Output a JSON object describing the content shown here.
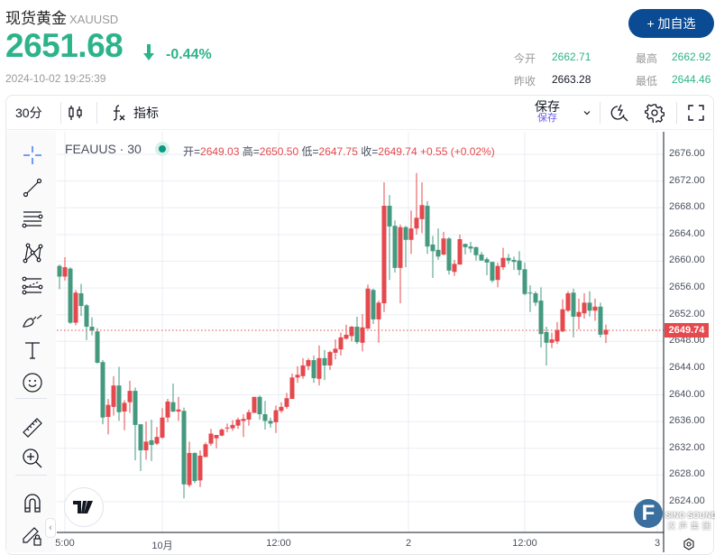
{
  "header": {
    "name": "现货黄金",
    "symbol": "XAUUSD",
    "price": "2651.68",
    "direction_icon": "arrow-down-icon",
    "change_pct": "-0.44%",
    "timestamp": "2024-10-02 19:25:39",
    "add_button": "+ 加自选"
  },
  "stats": [
    {
      "label": "今开",
      "value": "2662.71",
      "color": "#2db38a"
    },
    {
      "label": "最高",
      "value": "2662.92",
      "color": "#2db38a"
    },
    {
      "label": "昨收",
      "value": "2663.28",
      "color": "#131722"
    },
    {
      "label": "最低",
      "value": "2644.46",
      "color": "#2db38a"
    }
  ],
  "toolbar": {
    "interval": "30分",
    "chart_type_icon": "candles-icon",
    "indicators_icon": "fx-icon",
    "indicators": "指标",
    "save": "保存",
    "save_sub": "保存"
  },
  "left_tools": [
    "crosshair-icon",
    "trend-line-icon",
    "horizontal-lines-icon",
    "pattern-icon",
    "fib-icon",
    "brush-icon",
    "text-icon",
    "emoji-icon",
    "ruler-icon",
    "zoom-in-icon",
    "magnet-icon",
    "lock-drawing-icon"
  ],
  "legend": {
    "symbol": "FEAUUS · 30",
    "o_label": "开=",
    "o": "2649.03",
    "h_label": "高=",
    "h": "2650.50",
    "l_label": "低=",
    "l": "2647.75",
    "c_label": "收=",
    "c": "2649.74",
    "change": "+0.55 (+0.02%)"
  },
  "colors": {
    "up": "#e5484d",
    "down": "#45997f",
    "accent": "#0b4b94",
    "positive_text": "#2db38a"
  },
  "chart_data": {
    "type": "candlestick",
    "interval": "30",
    "ylim": [
      2621,
      2678
    ],
    "y_ticks": [
      "2676.00",
      "2672.00",
      "2668.00",
      "2664.00",
      "2660.00",
      "2656.00",
      "2652.00",
      "2648.00",
      "2644.00",
      "2640.00",
      "2636.00",
      "2632.00",
      "2628.00",
      "2624.00"
    ],
    "x_ticks": [
      {
        "label": "5:00",
        "index": 1
      },
      {
        "label": "10月",
        "index": 19
      },
      {
        "label": "12:00",
        "index": 40.5
      },
      {
        "label": "2",
        "index": 64.5
      },
      {
        "label": "12:00",
        "index": 86
      },
      {
        "label": "3",
        "index": 110.5
      }
    ],
    "current_price": "2649.74",
    "grid": true,
    "ohlc": [
      [
        2659.3,
        2659.5,
        2655.8,
        2657.7
      ],
      [
        2657.7,
        2660.6,
        2657.1,
        2659.1
      ],
      [
        2658.9,
        2659.1,
        2650.6,
        2650.8
      ],
      [
        2650.8,
        2655.7,
        2650.4,
        2655.3
      ],
      [
        2655.2,
        2656.6,
        2651.8,
        2653.3
      ],
      [
        2653.4,
        2653.6,
        2648.2,
        2650.2
      ],
      [
        2650.2,
        2651.6,
        2648.9,
        2649.6
      ],
      [
        2649.5,
        2650.0,
        2644.7,
        2644.8
      ],
      [
        2644.9,
        2645.2,
        2635.6,
        2636.6
      ],
      [
        2636.7,
        2639.4,
        2634.1,
        2638.5
      ],
      [
        2638.2,
        2642.8,
        2636.9,
        2641.4
      ],
      [
        2641.4,
        2644.2,
        2636.1,
        2637.4
      ],
      [
        2637.5,
        2639.2,
        2634.7,
        2638.8
      ],
      [
        2638.9,
        2642.1,
        2637.3,
        2640.6
      ],
      [
        2640.6,
        2641.1,
        2630.2,
        2635.5
      ],
      [
        2635.6,
        2635.6,
        2628.6,
        2631.7
      ],
      [
        2631.7,
        2636.0,
        2630.3,
        2633.0
      ],
      [
        2633.2,
        2636.3,
        2630.1,
        2632.5
      ],
      [
        2632.7,
        2635.2,
        2632.5,
        2633.7
      ],
      [
        2633.6,
        2638.0,
        2633.4,
        2636.6
      ],
      [
        2636.6,
        2639.4,
        2635.9,
        2639.0
      ],
      [
        2638.9,
        2641.7,
        2637.4,
        2637.5
      ],
      [
        2637.5,
        2639.7,
        2636.1,
        2637.8
      ],
      [
        2637.6,
        2638.1,
        2624.5,
        2626.6
      ],
      [
        2626.5,
        2633.0,
        2626.2,
        2631.3
      ],
      [
        2631.3,
        2631.4,
        2626.8,
        2627.1
      ],
      [
        2627.2,
        2631.7,
        2626.2,
        2630.9
      ],
      [
        2630.7,
        2632.9,
        2630.7,
        2632.6
      ],
      [
        2632.7,
        2634.9,
        2632.4,
        2634.2
      ],
      [
        2633.5,
        2634.0,
        2632.0,
        2634.0
      ],
      [
        2633.9,
        2635.0,
        2633.8,
        2634.8
      ],
      [
        2635.0,
        2635.7,
        2634.4,
        2635.1
      ],
      [
        2635.0,
        2636.2,
        2634.6,
        2635.5
      ],
      [
        2635.4,
        2636.6,
        2634.9,
        2636.3
      ],
      [
        2636.1,
        2637.1,
        2633.7,
        2636.4
      ],
      [
        2636.3,
        2637.8,
        2635.4,
        2637.4
      ],
      [
        2637.3,
        2639.7,
        2637.3,
        2639.7
      ],
      [
        2639.7,
        2639.9,
        2636.3,
        2637.1
      ],
      [
        2637.1,
        2639.1,
        2634.8,
        2636.1
      ],
      [
        2636.1,
        2636.6,
        2635.1,
        2635.7
      ],
      [
        2635.9,
        2638.4,
        2634.3,
        2637.7
      ],
      [
        2637.6,
        2638.9,
        2637.3,
        2638.2
      ],
      [
        2638.2,
        2640.3,
        2637.9,
        2639.5
      ],
      [
        2639.4,
        2643.2,
        2639.4,
        2642.6
      ],
      [
        2642.6,
        2644.3,
        2641.8,
        2643.0
      ],
      [
        2642.8,
        2645.5,
        2642.4,
        2644.4
      ],
      [
        2644.3,
        2645.5,
        2643.7,
        2645.2
      ],
      [
        2645.2,
        2645.9,
        2641.8,
        2642.5
      ],
      [
        2642.4,
        2647.4,
        2641.4,
        2645.5
      ],
      [
        2645.5,
        2646.7,
        2642.2,
        2644.4
      ],
      [
        2644.4,
        2646.6,
        2643.7,
        2646.4
      ],
      [
        2646.3,
        2648.3,
        2645.3,
        2646.9
      ],
      [
        2646.8,
        2649.3,
        2645.9,
        2648.6
      ],
      [
        2648.4,
        2650.5,
        2648.3,
        2649.0
      ],
      [
        2648.8,
        2650.3,
        2648.0,
        2650.2
      ],
      [
        2650.2,
        2651.7,
        2647.6,
        2647.9
      ],
      [
        2647.8,
        2652.1,
        2646.5,
        2650.1
      ],
      [
        2649.9,
        2656.5,
        2649.9,
        2655.9
      ],
      [
        2655.7,
        2655.9,
        2650.6,
        2651.3
      ],
      [
        2651.3,
        2654.1,
        2647.8,
        2653.8
      ],
      [
        2653.7,
        2671.8,
        2652.4,
        2668.3
      ],
      [
        2668.3,
        2669.9,
        2657.2,
        2665.2
      ],
      [
        2665.3,
        2666.1,
        2658.3,
        2659.0
      ],
      [
        2659.0,
        2665.5,
        2653.7,
        2665.1
      ],
      [
        2665.1,
        2665.3,
        2659.1,
        2663.2
      ],
      [
        2663.2,
        2667.6,
        2661.1,
        2664.9
      ],
      [
        2664.9,
        2673.2,
        2664.0,
        2666.5
      ],
      [
        2666.3,
        2671.8,
        2664.2,
        2668.4
      ],
      [
        2668.3,
        2669.0,
        2661.1,
        2662.2
      ],
      [
        2662.5,
        2663.8,
        2657.5,
        2661.5
      ],
      [
        2661.7,
        2664.9,
        2660.2,
        2660.7
      ],
      [
        2661.0,
        2664.4,
        2660.9,
        2663.4
      ],
      [
        2663.4,
        2663.6,
        2658.0,
        2658.6
      ],
      [
        2658.4,
        2660.2,
        2657.8,
        2659.6
      ],
      [
        2659.5,
        2664.0,
        2659.5,
        2663.3
      ],
      [
        2662.6,
        2662.6,
        2661.0,
        2662.1
      ],
      [
        2662.2,
        2662.9,
        2661.3,
        2661.9
      ],
      [
        2662.1,
        2662.2,
        2660.1,
        2660.9
      ],
      [
        2661.0,
        2661.4,
        2660.1,
        2660.1
      ],
      [
        2660.3,
        2660.6,
        2657.9,
        2659.8
      ],
      [
        2659.9,
        2659.9,
        2656.8,
        2657.1
      ],
      [
        2657.2,
        2659.8,
        2656.1,
        2659.3
      ],
      [
        2659.1,
        2662.0,
        2658.7,
        2660.5
      ],
      [
        2660.5,
        2661.1,
        2659.6,
        2660.1
      ],
      [
        2660.2,
        2660.7,
        2658.7,
        2659.9
      ],
      [
        2660.1,
        2661.5,
        2657.9,
        2658.7
      ],
      [
        2658.8,
        2659.8,
        2654.9,
        2655.1
      ],
      [
        2655.3,
        2656.4,
        2652.4,
        2655.2
      ],
      [
        2655.2,
        2655.5,
        2653.3,
        2653.8
      ],
      [
        2654.1,
        2656.1,
        2647.1,
        2649.1
      ],
      [
        2649.4,
        2650.2,
        2644.4,
        2647.8
      ],
      [
        2647.8,
        2649.3,
        2647.0,
        2648.3
      ],
      [
        2648.0,
        2650.9,
        2647.6,
        2649.7
      ],
      [
        2649.5,
        2654.3,
        2649.4,
        2652.8
      ],
      [
        2652.6,
        2655.5,
        2652.4,
        2655.2
      ],
      [
        2655.3,
        2655.9,
        2648.6,
        2651.7
      ],
      [
        2651.7,
        2654.4,
        2649.8,
        2652.4
      ],
      [
        2652.2,
        2655.2,
        2651.4,
        2653.8
      ],
      [
        2653.8,
        2655.5,
        2651.7,
        2652.6
      ],
      [
        2652.6,
        2654.4,
        2651.1,
        2653.2
      ],
      [
        2653.2,
        2653.8,
        2648.6,
        2649.0
      ],
      [
        2649.03,
        2650.5,
        2647.75,
        2649.74
      ]
    ]
  },
  "watermark": {
    "brand": "SINO SOUND",
    "brand_cn": "汉声集团",
    "letter": "F"
  }
}
